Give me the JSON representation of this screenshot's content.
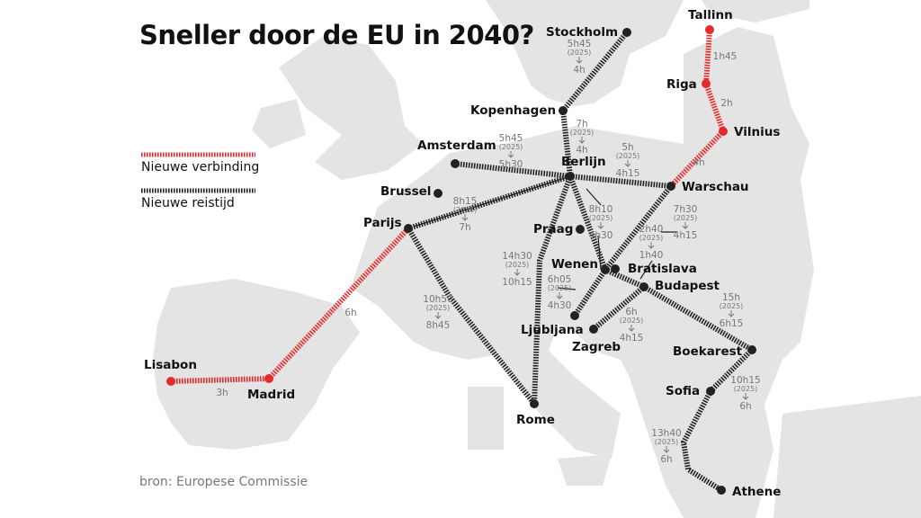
{
  "title": "Sneller door de EU in 2040?",
  "legend": [
    {
      "label": "Nieuwe verbinding",
      "color": "#e52b2b"
    },
    {
      "label": "Nieuwe reistijd",
      "color": "#222222"
    }
  ],
  "source": "bron: Europese Commissie",
  "colors": {
    "land": "#e4e4e4",
    "sea": "#ffffff",
    "new_connection": "#e52b2b",
    "new_time": "#222222"
  },
  "cities": [
    {
      "name": "Stockholm",
      "color": "#222222"
    },
    {
      "name": "Kopenhagen",
      "color": "#222222"
    },
    {
      "name": "Berlijn",
      "color": "#222222"
    },
    {
      "name": "Amsterdam",
      "color": "#222222"
    },
    {
      "name": "Brussel",
      "color": "#222222"
    },
    {
      "name": "Parijs",
      "color": "#222222"
    },
    {
      "name": "Warschau",
      "color": "#222222"
    },
    {
      "name": "Praag",
      "color": "#222222"
    },
    {
      "name": "Wenen",
      "color": "#222222"
    },
    {
      "name": "Bratislava",
      "color": "#222222"
    },
    {
      "name": "Budapest",
      "color": "#222222"
    },
    {
      "name": "Ljubljana",
      "color": "#222222"
    },
    {
      "name": "Zagreb",
      "color": "#222222"
    },
    {
      "name": "Boekarest",
      "color": "#222222"
    },
    {
      "name": "Sofia",
      "color": "#222222"
    },
    {
      "name": "Athene",
      "color": "#222222"
    },
    {
      "name": "Rome",
      "color": "#222222"
    },
    {
      "name": "Madrid",
      "color": "#e52b2b"
    },
    {
      "name": "Lisabon",
      "color": "#e52b2b"
    },
    {
      "name": "Vilnius",
      "color": "#e52b2b"
    },
    {
      "name": "Riga",
      "color": "#e52b2b"
    },
    {
      "name": "Tallinn",
      "color": "#e52b2b"
    }
  ],
  "new_connections": [
    {
      "from": "Lisabon",
      "to": "Madrid",
      "time": "3h"
    },
    {
      "from": "Madrid",
      "to": "Parijs",
      "time": "6h"
    },
    {
      "from": "Tallinn",
      "to": "Riga",
      "time": "1h45"
    },
    {
      "from": "Riga",
      "to": "Vilnius",
      "time": "2h"
    },
    {
      "from": "Vilnius",
      "to": "Warschau",
      "time": "4h"
    }
  ],
  "new_times": [
    {
      "from": "Stockholm",
      "to": "Kopenhagen",
      "old": "5h45",
      "year": "(2025)",
      "new": "4h"
    },
    {
      "from": "Kopenhagen",
      "to": "Berlijn",
      "old": "7h",
      "year": "(2025)",
      "new": "4h"
    },
    {
      "from": "Amsterdam",
      "to": "Berlijn",
      "old": "5h45",
      "year": "(2025)",
      "new": "5h30"
    },
    {
      "from": "Berlijn",
      "to": "Warschau",
      "old": "5h",
      "year": "(2025)",
      "new": "4h15"
    },
    {
      "from": "Parijs",
      "to": "Berlijn",
      "old": "8h15",
      "year": "(2025)",
      "new": "7h"
    },
    {
      "from": "Berlijn",
      "to": "Wenen",
      "old": "8h10",
      "year": "(2025)",
      "new": "4h30"
    },
    {
      "from": "Warschau",
      "to": "Wenen",
      "old": "7h30",
      "year": "(2025)",
      "new": "4h15"
    },
    {
      "from": "Wenen",
      "to": "Budapest",
      "old": "2h40",
      "year": "(2025)",
      "new": "1h40"
    },
    {
      "from": "Berlijn",
      "to": "Rome",
      "old": "14h30",
      "year": "(2025)",
      "new": "10h15"
    },
    {
      "from": "Wenen",
      "to": "Ljubljana",
      "old": "6h05",
      "year": "(2025)",
      "new": "4h30"
    },
    {
      "from": "Parijs",
      "to": "Rome",
      "old": "10h50",
      "year": "(2025)",
      "new": "8h45"
    },
    {
      "from": "Budapest",
      "to": "Zagreb",
      "old": "6h",
      "year": "(2025)",
      "new": "4h15"
    },
    {
      "from": "Budapest",
      "to": "Boekarest",
      "old": "15h",
      "year": "(2025)",
      "new": "6h15"
    },
    {
      "from": "Boekarest",
      "to": "Sofia",
      "old": "10h15",
      "year": "(2025)",
      "new": "6h"
    },
    {
      "from": "Sofia",
      "to": "Athene",
      "old": "13h40",
      "year": "(2025)",
      "new": "6h"
    }
  ]
}
